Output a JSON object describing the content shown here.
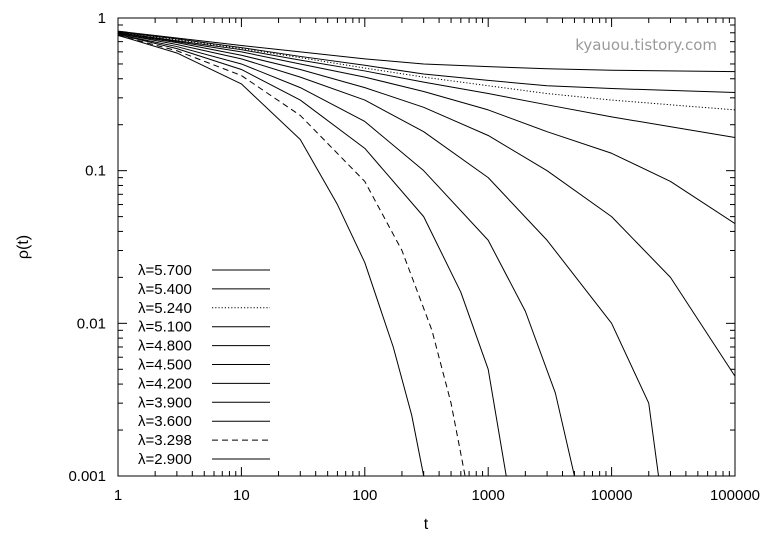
{
  "watermark": "kyauou.tistory.com",
  "chart_data": {
    "type": "line",
    "title": "",
    "xlabel": "t",
    "ylabel": "ρ(t)",
    "xscale": "log",
    "yscale": "log",
    "xlim": [
      1,
      100000
    ],
    "ylim": [
      0.001,
      1
    ],
    "grid": false,
    "legend_position": "bottom-left",
    "x_tick_labels": [
      {
        "value": 1,
        "label": "1"
      },
      {
        "value": 10,
        "label": "10"
      },
      {
        "value": 100,
        "label": "100"
      },
      {
        "value": 1000,
        "label": "1000"
      },
      {
        "value": 10000,
        "label": "10000"
      },
      {
        "value": 100000,
        "label": "100000"
      }
    ],
    "y_tick_labels": [
      {
        "value": 1,
        "label": "1"
      },
      {
        "value": 0.1,
        "label": "0.1"
      },
      {
        "value": 0.01,
        "label": "0.01"
      },
      {
        "value": 0.001,
        "label": "0.001"
      }
    ],
    "series": [
      {
        "name": "λ=5.700",
        "dash": "solid",
        "points": [
          [
            1,
            0.82
          ],
          [
            3,
            0.74
          ],
          [
            10,
            0.66
          ],
          [
            30,
            0.6
          ],
          [
            100,
            0.54
          ],
          [
            300,
            0.5
          ],
          [
            1000,
            0.48
          ],
          [
            3000,
            0.465
          ],
          [
            10000,
            0.455
          ],
          [
            100000,
            0.445
          ]
        ]
      },
      {
        "name": "λ=5.400",
        "dash": "solid",
        "points": [
          [
            1,
            0.81
          ],
          [
            3,
            0.73
          ],
          [
            10,
            0.64
          ],
          [
            30,
            0.56
          ],
          [
            100,
            0.49
          ],
          [
            300,
            0.43
          ],
          [
            1000,
            0.39
          ],
          [
            3000,
            0.36
          ],
          [
            10000,
            0.345
          ],
          [
            100000,
            0.325
          ]
        ]
      },
      {
        "name": "λ=5.240",
        "dash": "dotted",
        "points": [
          [
            1,
            0.81
          ],
          [
            3,
            0.72
          ],
          [
            10,
            0.63
          ],
          [
            30,
            0.55
          ],
          [
            100,
            0.47
          ],
          [
            300,
            0.41
          ],
          [
            1000,
            0.36
          ],
          [
            3000,
            0.32
          ],
          [
            10000,
            0.29
          ],
          [
            100000,
            0.25
          ]
        ]
      },
      {
        "name": "λ=5.100",
        "dash": "solid",
        "points": [
          [
            1,
            0.8
          ],
          [
            3,
            0.71
          ],
          [
            10,
            0.62
          ],
          [
            30,
            0.53
          ],
          [
            100,
            0.45
          ],
          [
            300,
            0.38
          ],
          [
            1000,
            0.32
          ],
          [
            3000,
            0.27
          ],
          [
            10000,
            0.225
          ],
          [
            100000,
            0.165
          ]
        ]
      },
      {
        "name": "λ=4.800",
        "dash": "solid",
        "points": [
          [
            1,
            0.8
          ],
          [
            3,
            0.7
          ],
          [
            10,
            0.6
          ],
          [
            30,
            0.5
          ],
          [
            100,
            0.41
          ],
          [
            300,
            0.33
          ],
          [
            1000,
            0.25
          ],
          [
            3000,
            0.18
          ],
          [
            10000,
            0.13
          ],
          [
            30000,
            0.085
          ],
          [
            100000,
            0.045
          ]
        ]
      },
      {
        "name": "λ=4.500",
        "dash": "solid",
        "points": [
          [
            1,
            0.79
          ],
          [
            3,
            0.69
          ],
          [
            10,
            0.57
          ],
          [
            30,
            0.46
          ],
          [
            100,
            0.35
          ],
          [
            300,
            0.26
          ],
          [
            1000,
            0.17
          ],
          [
            3000,
            0.1
          ],
          [
            10000,
            0.05
          ],
          [
            30000,
            0.02
          ],
          [
            100000,
            0.0045
          ]
        ]
      },
      {
        "name": "λ=4.200",
        "dash": "solid",
        "points": [
          [
            1,
            0.79
          ],
          [
            3,
            0.67
          ],
          [
            10,
            0.54
          ],
          [
            30,
            0.41
          ],
          [
            100,
            0.29
          ],
          [
            300,
            0.18
          ],
          [
            1000,
            0.09
          ],
          [
            3000,
            0.035
          ],
          [
            10000,
            0.01
          ],
          [
            20000,
            0.003
          ],
          [
            24000,
            0.001
          ]
        ]
      },
      {
        "name": "λ=3.900",
        "dash": "solid",
        "points": [
          [
            1,
            0.78
          ],
          [
            3,
            0.65
          ],
          [
            10,
            0.5
          ],
          [
            30,
            0.35
          ],
          [
            100,
            0.21
          ],
          [
            300,
            0.1
          ],
          [
            1000,
            0.035
          ],
          [
            2000,
            0.012
          ],
          [
            3500,
            0.0035
          ],
          [
            5000,
            0.001
          ]
        ]
      },
      {
        "name": "λ=3.600",
        "dash": "solid",
        "points": [
          [
            1,
            0.78
          ],
          [
            3,
            0.63
          ],
          [
            10,
            0.46
          ],
          [
            30,
            0.29
          ],
          [
            100,
            0.14
          ],
          [
            300,
            0.05
          ],
          [
            600,
            0.016
          ],
          [
            1000,
            0.005
          ],
          [
            1400,
            0.001
          ]
        ]
      },
      {
        "name": "λ=3.298",
        "dash": "dashed",
        "points": [
          [
            1,
            0.77
          ],
          [
            3,
            0.61
          ],
          [
            10,
            0.42
          ],
          [
            30,
            0.23
          ],
          [
            100,
            0.085
          ],
          [
            200,
            0.03
          ],
          [
            350,
            0.009
          ],
          [
            500,
            0.003
          ],
          [
            650,
            0.001
          ]
        ]
      },
      {
        "name": "λ=2.900",
        "dash": "solid",
        "points": [
          [
            1,
            0.77
          ],
          [
            3,
            0.59
          ],
          [
            10,
            0.37
          ],
          [
            30,
            0.16
          ],
          [
            60,
            0.06
          ],
          [
            100,
            0.025
          ],
          [
            170,
            0.007
          ],
          [
            240,
            0.0025
          ],
          [
            300,
            0.001
          ]
        ]
      }
    ]
  }
}
